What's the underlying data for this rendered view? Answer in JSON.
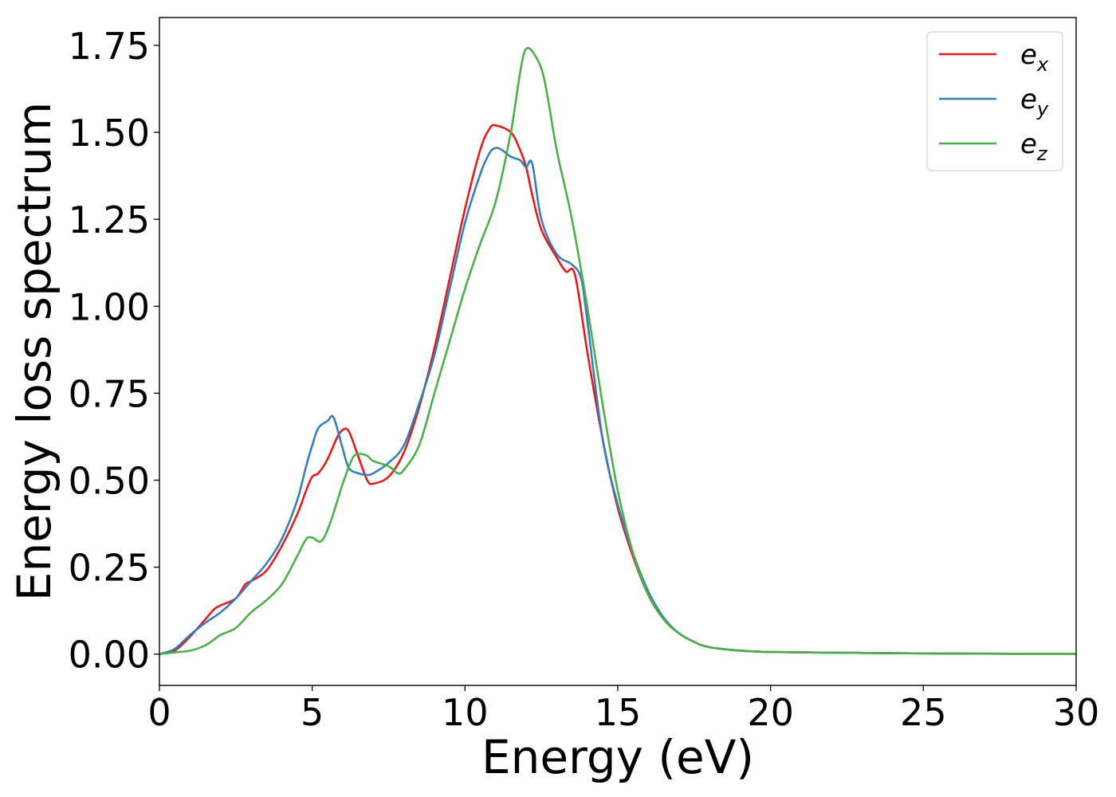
{
  "chart_data": {
    "type": "line",
    "title": "",
    "xlabel": "Energy (eV)",
    "ylabel": "Energy loss spectrum",
    "xlim": [
      0,
      30
    ],
    "ylim": [
      -0.09,
      1.83
    ],
    "xticks": [
      0,
      5,
      10,
      15,
      20,
      25,
      30
    ],
    "xtick_labels": [
      "0",
      "5",
      "10",
      "15",
      "20",
      "25",
      "30"
    ],
    "yticks": [
      0.0,
      0.25,
      0.5,
      0.75,
      1.0,
      1.25,
      1.5,
      1.75
    ],
    "ytick_labels": [
      "0.00",
      "0.25",
      "0.50",
      "0.75",
      "1.00",
      "1.25",
      "1.50",
      "1.75"
    ],
    "grid": false,
    "legend_position": "top-right",
    "series": [
      {
        "name": "e_x",
        "label_base": "e",
        "label_sub": "x",
        "color": "#e41a1c",
        "x": [
          0,
          0.5,
          1.0,
          1.5,
          1.8,
          2.0,
          2.5,
          2.8,
          3.0,
          3.5,
          4.0,
          4.5,
          4.8,
          5.0,
          5.2,
          5.5,
          5.8,
          6.0,
          6.2,
          6.5,
          6.8,
          7.0,
          7.5,
          8.0,
          8.5,
          9.0,
          9.5,
          10.0,
          10.5,
          10.8,
          11.0,
          11.5,
          11.8,
          12.0,
          12.2,
          12.5,
          13.0,
          13.3,
          13.6,
          14.0,
          14.5,
          15.0,
          15.5,
          16.0,
          16.5,
          17.0,
          17.5,
          18.0,
          19.0,
          20.0,
          22.0,
          25.0,
          28.0,
          30.0
        ],
        "y": [
          0.0,
          0.01,
          0.05,
          0.1,
          0.13,
          0.14,
          0.16,
          0.2,
          0.21,
          0.24,
          0.31,
          0.4,
          0.47,
          0.51,
          0.52,
          0.56,
          0.62,
          0.645,
          0.64,
          0.57,
          0.5,
          0.49,
          0.51,
          0.58,
          0.71,
          0.88,
          1.08,
          1.28,
          1.45,
          1.51,
          1.52,
          1.5,
          1.45,
          1.4,
          1.32,
          1.22,
          1.14,
          1.1,
          1.09,
          0.87,
          0.62,
          0.42,
          0.28,
          0.17,
          0.1,
          0.06,
          0.035,
          0.02,
          0.01,
          0.006,
          0.004,
          0.002,
          0.001,
          0.001
        ]
      },
      {
        "name": "e_y",
        "label_base": "e",
        "label_sub": "y",
        "color": "#377eb8",
        "x": [
          0,
          0.5,
          1.0,
          1.5,
          2.0,
          2.5,
          3.0,
          3.5,
          4.0,
          4.5,
          4.8,
          5.0,
          5.2,
          5.5,
          5.7,
          6.0,
          6.2,
          6.5,
          6.8,
          7.0,
          7.5,
          8.0,
          8.5,
          9.0,
          9.5,
          10.0,
          10.5,
          10.8,
          11.0,
          11.2,
          11.5,
          11.8,
          12.0,
          12.2,
          12.5,
          13.0,
          13.5,
          13.8,
          14.0,
          14.5,
          15.0,
          15.5,
          16.0,
          16.5,
          17.0,
          17.5,
          18.0,
          19.0,
          20.0,
          22.0,
          25.0,
          28.0,
          30.0
        ],
        "y": [
          0.0,
          0.015,
          0.055,
          0.09,
          0.12,
          0.16,
          0.21,
          0.26,
          0.33,
          0.44,
          0.54,
          0.6,
          0.65,
          0.67,
          0.68,
          0.59,
          0.535,
          0.52,
          0.515,
          0.52,
          0.55,
          0.6,
          0.72,
          0.86,
          1.05,
          1.24,
          1.38,
          1.44,
          1.455,
          1.45,
          1.43,
          1.42,
          1.4,
          1.41,
          1.25,
          1.15,
          1.12,
          1.08,
          0.96,
          0.62,
          0.43,
          0.29,
          0.18,
          0.105,
          0.06,
          0.035,
          0.02,
          0.01,
          0.006,
          0.004,
          0.002,
          0.001,
          0.001
        ]
      },
      {
        "name": "e_z",
        "label_base": "e",
        "label_sub": "z",
        "color": "#4daf4a",
        "x": [
          0,
          0.5,
          1.0,
          1.5,
          2.0,
          2.5,
          3.0,
          3.5,
          4.0,
          4.5,
          4.8,
          5.0,
          5.3,
          5.6,
          6.0,
          6.3,
          6.5,
          6.8,
          7.0,
          7.5,
          7.8,
          8.0,
          8.5,
          9.0,
          9.5,
          10.0,
          10.5,
          11.0,
          11.5,
          11.8,
          12.0,
          12.3,
          12.6,
          13.0,
          13.5,
          14.0,
          14.5,
          15.0,
          15.5,
          16.0,
          16.5,
          17.0,
          17.5,
          18.0,
          19.0,
          20.0,
          22.0,
          25.0,
          28.0,
          30.0
        ],
        "y": [
          0.0,
          0.005,
          0.01,
          0.025,
          0.055,
          0.075,
          0.12,
          0.155,
          0.2,
          0.28,
          0.33,
          0.335,
          0.325,
          0.38,
          0.49,
          0.56,
          0.575,
          0.57,
          0.555,
          0.54,
          0.52,
          0.53,
          0.6,
          0.75,
          0.9,
          1.05,
          1.18,
          1.3,
          1.5,
          1.67,
          1.74,
          1.72,
          1.65,
          1.45,
          1.25,
          1.0,
          0.72,
          0.47,
          0.29,
          0.17,
          0.1,
          0.06,
          0.035,
          0.02,
          0.01,
          0.006,
          0.004,
          0.002,
          0.001,
          0.001
        ]
      }
    ]
  }
}
